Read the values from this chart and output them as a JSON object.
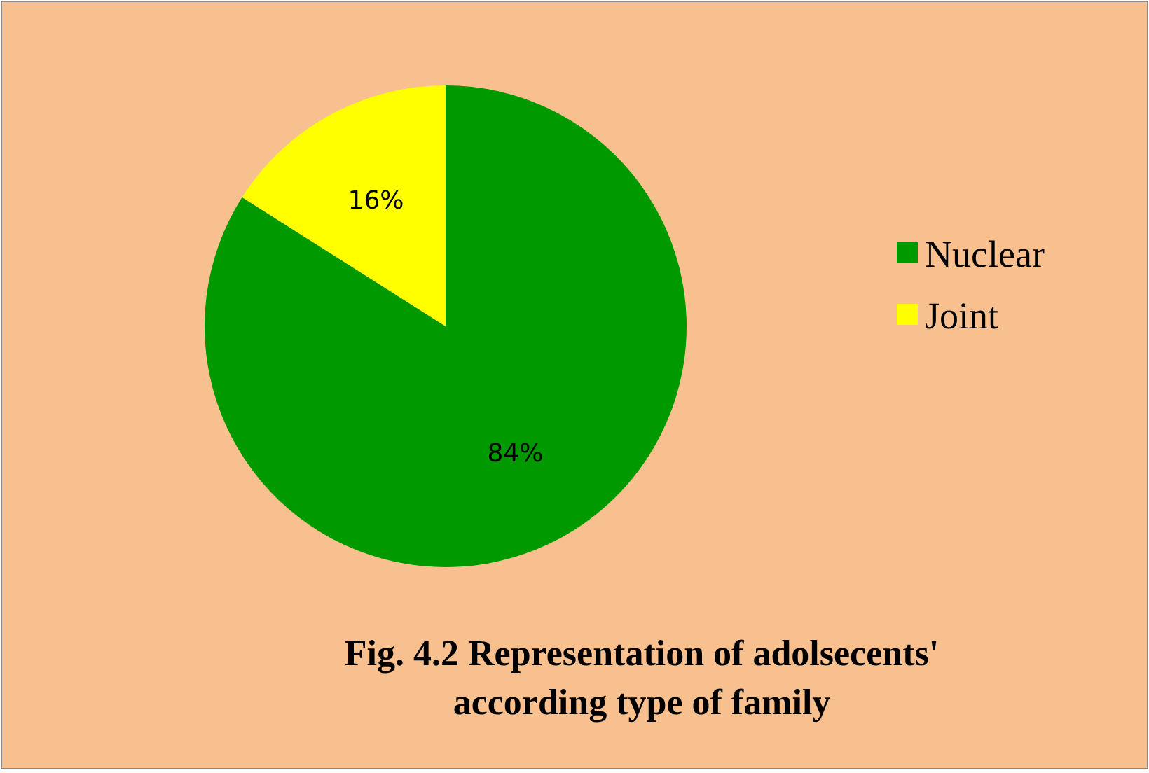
{
  "chart_data": {
    "type": "pie",
    "title": "Fig. 4.2 Representation of adolsecents' according type of family",
    "categories": [
      "Nuclear",
      "Joint"
    ],
    "values": [
      84,
      16
    ],
    "colors": [
      "#009900",
      "#ffff00"
    ],
    "value_labels": [
      "84%",
      "16%"
    ],
    "legend": "right"
  }
}
